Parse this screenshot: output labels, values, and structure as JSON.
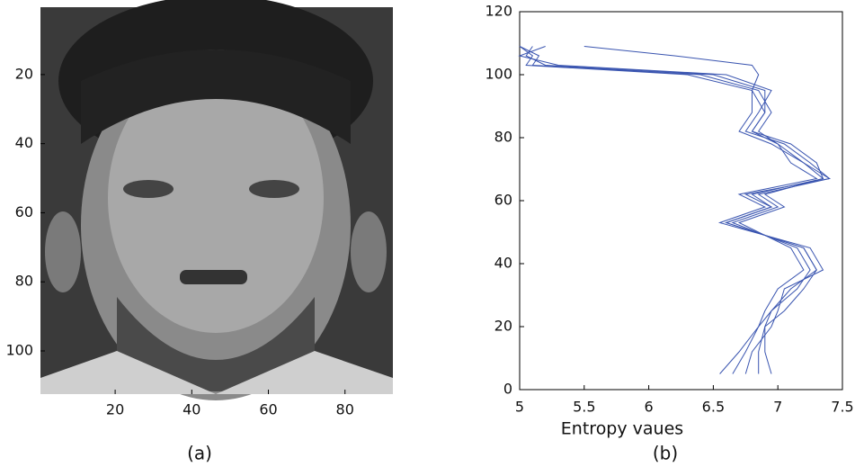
{
  "chart_data": [
    {
      "type": "image",
      "caption": "(a)",
      "xlim": [
        0.5,
        92.5
      ],
      "ylim": [
        0.5,
        112.5
      ],
      "xticks": [
        20,
        40,
        60,
        80
      ],
      "yticks": [
        20,
        40,
        60,
        80,
        100
      ]
    },
    {
      "type": "line",
      "caption": "(b)",
      "x_label": "Entropy vaues",
      "xlim": [
        5,
        7.5
      ],
      "ylim": [
        0,
        120
      ],
      "xticks": [
        5,
        5.5,
        6,
        6.5,
        7,
        7.5
      ],
      "yticks": [
        0,
        20,
        40,
        60,
        80,
        100,
        120
      ],
      "y": [
        5,
        12,
        20,
        25,
        32,
        38,
        45,
        53,
        58,
        62,
        67,
        72,
        78,
        82,
        88,
        95,
        100,
        103,
        106,
        109
      ],
      "series": [
        {
          "color": "#3a55b0",
          "values": [
            6.55,
            6.7,
            6.85,
            6.95,
            7.1,
            7.3,
            7.2,
            6.6,
            6.95,
            6.8,
            7.35,
            7.2,
            7.0,
            6.8,
            6.9,
            6.9,
            6.5,
            5.2,
            5.05,
            5.1
          ]
        },
        {
          "color": "#3a55b0",
          "values": [
            6.95,
            6.9,
            6.9,
            6.95,
            7.15,
            7.25,
            7.15,
            6.65,
            7.0,
            6.85,
            7.4,
            7.25,
            7.05,
            6.75,
            6.85,
            6.95,
            6.6,
            5.3,
            5.0,
            5.2
          ]
        },
        {
          "color": "#3a55b0",
          "values": [
            6.75,
            6.8,
            6.95,
            7.0,
            7.05,
            7.35,
            7.25,
            6.55,
            6.9,
            6.7,
            7.3,
            7.1,
            7.0,
            6.85,
            6.95,
            6.85,
            6.4,
            5.1,
            5.15,
            5.0
          ]
        },
        {
          "color": "#3a55b0",
          "values": [
            6.65,
            6.75,
            6.85,
            6.9,
            7.0,
            7.2,
            7.1,
            6.7,
            7.05,
            6.9,
            7.35,
            7.3,
            7.1,
            6.8,
            6.9,
            6.8,
            6.3,
            5.05,
            5.1,
            5.0
          ]
        },
        {
          "color": "#3a55b0",
          "values": [
            6.85,
            6.85,
            6.9,
            7.05,
            7.2,
            7.3,
            7.2,
            6.6,
            6.95,
            6.75,
            7.4,
            7.2,
            6.95,
            6.7,
            6.8,
            6.8,
            6.85,
            6.8,
            6.2,
            5.5
          ]
        }
      ]
    }
  ]
}
